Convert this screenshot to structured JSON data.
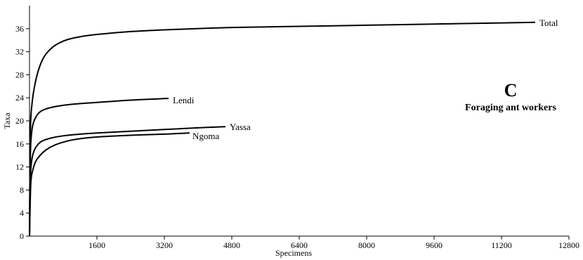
{
  "chart_data": {
    "type": "line",
    "xlabel": "Specimens",
    "ylabel": "Taxa",
    "xlim": [
      0,
      12800
    ],
    "ylim": [
      0,
      40
    ],
    "xticks": [
      1600,
      3200,
      4800,
      6400,
      8000,
      9600,
      11200,
      12800
    ],
    "yticks": [
      0,
      4,
      8,
      12,
      16,
      20,
      24,
      28,
      32,
      36
    ],
    "annotation_letter": "C",
    "annotation_text": "Foraging ant workers",
    "grid": false,
    "series": [
      {
        "name": "Total",
        "x": [
          0,
          20,
          60,
          120,
          200,
          300,
          400,
          550,
          700,
          900,
          1200,
          1600,
          2400,
          3200,
          4800,
          6400,
          8000,
          9600,
          11200,
          12000
        ],
        "y": [
          0,
          18,
          23,
          26,
          28.5,
          30.5,
          31.7,
          32.8,
          33.5,
          34.1,
          34.6,
          35.0,
          35.5,
          35.8,
          36.2,
          36.4,
          36.6,
          36.8,
          37.0,
          37.1
        ]
      },
      {
        "name": "Lendi",
        "x": [
          0,
          20,
          60,
          120,
          200,
          300,
          500,
          800,
          1200,
          1600,
          2400,
          3300
        ],
        "y": [
          0,
          14,
          18.5,
          20.2,
          21.2,
          21.8,
          22.3,
          22.7,
          23.0,
          23.2,
          23.6,
          23.9
        ]
      },
      {
        "name": "Yassa",
        "x": [
          0,
          20,
          60,
          120,
          200,
          300,
          500,
          800,
          1200,
          1600,
          2400,
          3200,
          4000,
          4650
        ],
        "y": [
          0,
          10,
          13.5,
          15,
          15.9,
          16.5,
          17.0,
          17.4,
          17.7,
          17.9,
          18.2,
          18.5,
          18.8,
          19.0
        ]
      },
      {
        "name": "Ngoma",
        "x": [
          0,
          30,
          80,
          150,
          250,
          400,
          600,
          900,
          1200,
          1600,
          2400,
          3200,
          3800
        ],
        "y": [
          0,
          9,
          11.5,
          13,
          14.0,
          15.0,
          15.8,
          16.5,
          16.9,
          17.2,
          17.5,
          17.7,
          17.9
        ]
      }
    ]
  }
}
